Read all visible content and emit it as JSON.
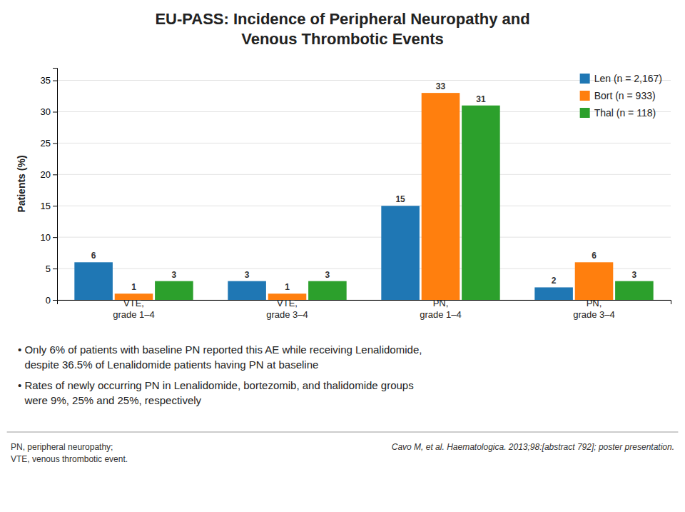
{
  "chart_data": {
    "type": "bar",
    "title": "EU-PASS: Incidence of Peripheral Neuropathy and\nVenous Thrombotic Events",
    "categories": [
      "VTE,\ngrade 1–4",
      "VTE,\ngrade 3–4",
      "PN,\ngrade 1–4",
      "PN,\ngrade 3–4"
    ],
    "series": [
      {
        "name": "Len (n = 2,167)",
        "values": [
          6,
          3,
          15,
          2
        ]
      },
      {
        "name": "Bort (n = 933)",
        "values": [
          1,
          1,
          33,
          6
        ]
      },
      {
        "name": "Thal (n = 118)",
        "values": [
          3,
          3,
          31,
          3
        ]
      }
    ],
    "ylabel": "Patients (%)",
    "ylim": [
      0,
      37
    ],
    "yticks": [
      0,
      5,
      10,
      15,
      20,
      25,
      30,
      35
    ],
    "grid": true,
    "legend": "upper right",
    "data_labels": true,
    "annotations": [
      [
        "• Only 6% of patients with baseline PN reported this AE while receiving Lenalidomide,",
        "despite 36.5% of Lenalidomide patients having PN at baseline"
      ],
      [
        "• Rates of newly occurring PN in Lenalidomide, bortezomib, and thalidomide groups",
        "were 9%, 25% and 25%, respectively"
      ],
      [
        "PN, peripheral neuropathy;",
        "VTE, venous thrombotic event."
      ],
      [
        "Cavo M, et al. Haematologica. 2013;98:[abstract 792]; poster presentation."
      ]
    ]
  }
}
